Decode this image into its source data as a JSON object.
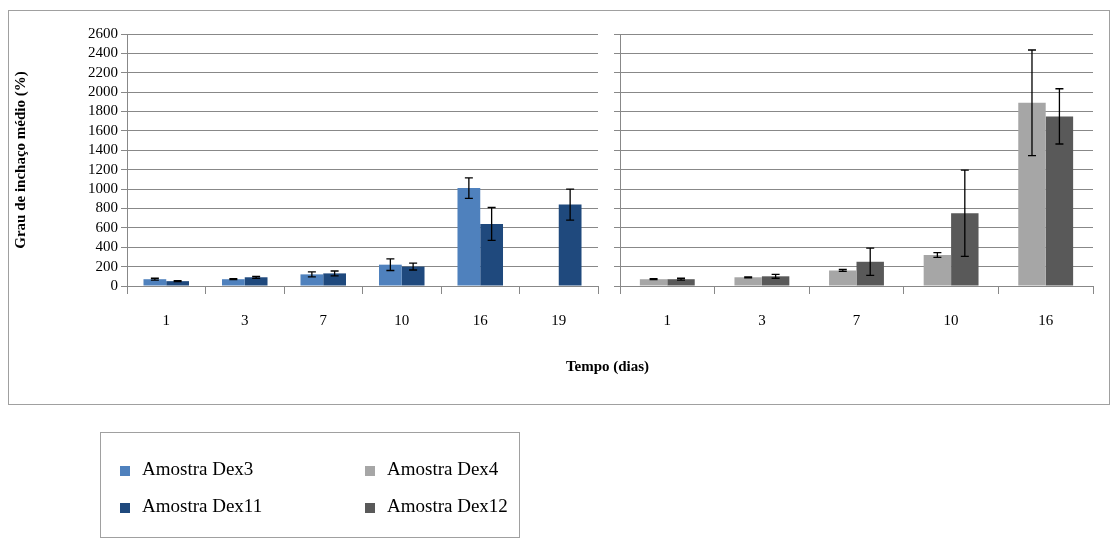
{
  "chart_data": [
    {
      "type": "bar",
      "ylabel": "Grau de inchaço médio (%)",
      "xlabel": "Tempo (dias)",
      "categories": [
        "1",
        "3",
        "7",
        "10",
        "16",
        "19"
      ],
      "ylim": [
        0,
        2600
      ],
      "yticks": [
        0,
        200,
        400,
        600,
        800,
        1000,
        1200,
        1400,
        1600,
        1800,
        2000,
        2200,
        2400,
        2600
      ],
      "grid": "y",
      "legend": "bottom",
      "series": [
        {
          "name": "Amostra Dex3",
          "color": "#4f81bd",
          "values": [
            70,
            70,
            120,
            220,
            1010,
            null
          ],
          "errors": [
            10,
            5,
            25,
            60,
            105,
            null
          ]
        },
        {
          "name": "Amostra Dex11",
          "color": "#1f497d",
          "values": [
            50,
            90,
            130,
            200,
            640,
            840
          ],
          "errors": [
            5,
            10,
            25,
            35,
            170,
            160
          ]
        }
      ]
    },
    {
      "type": "bar",
      "categories": [
        "1",
        "3",
        "7",
        "10",
        "16"
      ],
      "ylim": [
        0,
        2600
      ],
      "yticks": [
        0,
        200,
        400,
        600,
        800,
        1000,
        1200,
        1400,
        1600,
        1800,
        2000,
        2200,
        2400,
        2600
      ],
      "grid": "y",
      "legend": "bottom",
      "tick_labels": "x",
      "series": [
        {
          "name": "Amostra Dex4",
          "color": "#a6a6a6",
          "values": [
            70,
            90,
            160,
            320,
            1890
          ],
          "errors": [
            5,
            5,
            10,
            25,
            545
          ]
        },
        {
          "name": "Amostra Dex12",
          "color": "#595959",
          "values": [
            70,
            100,
            250,
            750,
            1750
          ],
          "errors": [
            10,
            20,
            140,
            445,
            285
          ]
        }
      ]
    }
  ]
}
